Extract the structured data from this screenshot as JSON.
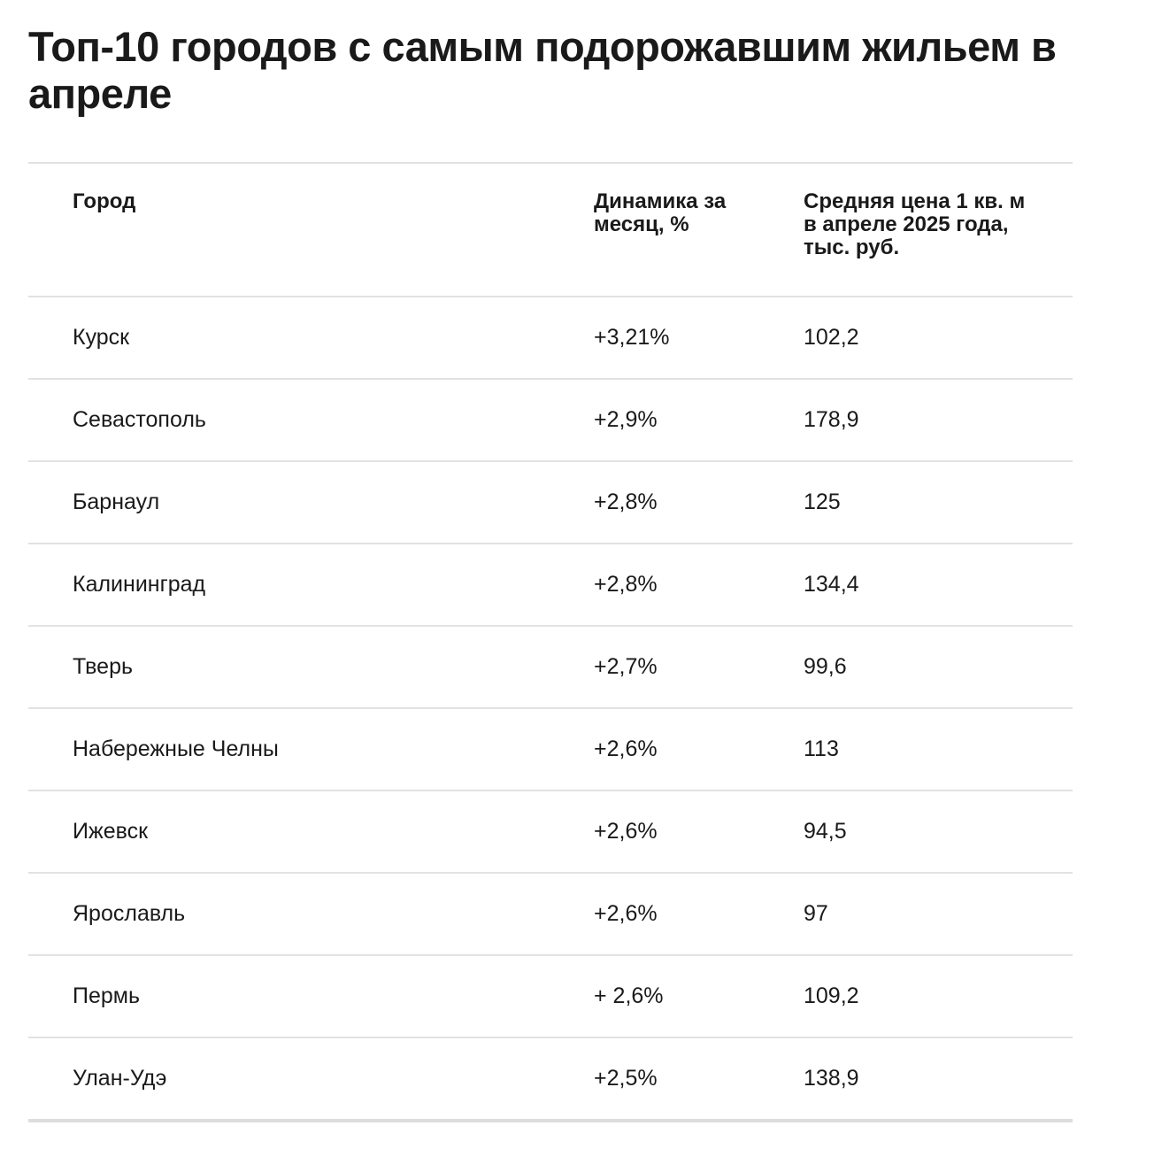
{
  "title": "Топ-10 городов с самым подорожавшим жильем в апреле",
  "table": {
    "headers": {
      "city": "Город",
      "dynamics": "Динамика за месяц, %",
      "price": "Средняя цена 1 кв. м в апреле 2025 года, тыс. руб."
    },
    "rows": [
      {
        "city": "Курск",
        "dynamics": "+3,21%",
        "price": "102,2"
      },
      {
        "city": "Севастополь",
        "dynamics": "+2,9%",
        "price": "178,9"
      },
      {
        "city": "Барнаул",
        "dynamics": "+2,8%",
        "price": "125"
      },
      {
        "city": "Калининград",
        "dynamics": "+2,8%",
        "price": "134,4"
      },
      {
        "city": "Тверь",
        "dynamics": "+2,7%",
        "price": "99,6"
      },
      {
        "city": "Набережные Челны",
        "dynamics": "+2,6%",
        "price": "113"
      },
      {
        "city": "Ижевск",
        "dynamics": "+2,6%",
        "price": "94,5"
      },
      {
        "city": "Ярославль",
        "dynamics": "+2,6%",
        "price": "97"
      },
      {
        "city": "Пермь",
        "dynamics": "+ 2,6%",
        "price": "109,2"
      },
      {
        "city": "Улан-Удэ",
        "dynamics": "+2,5%",
        "price": "138,9"
      }
    ]
  }
}
